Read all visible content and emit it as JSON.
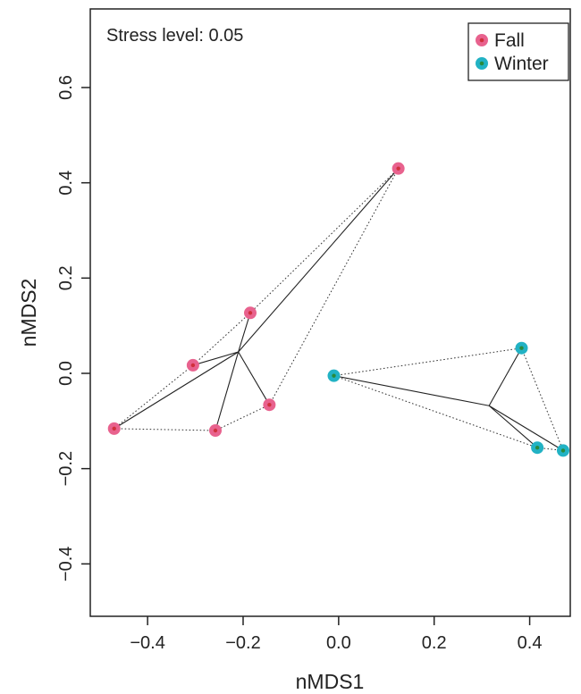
{
  "chart_data": {
    "type": "scatter",
    "title": "",
    "xlabel": "nMDS1",
    "ylabel": "nMDS2",
    "annotation": "Stress level: 0.05",
    "xlim": [
      -0.52,
      0.485
    ],
    "ylim": [
      -0.51,
      0.765
    ],
    "x_ticks": [
      -0.4,
      -0.2,
      0.0,
      0.2,
      0.4
    ],
    "x_tick_labels": [
      "−0.4",
      "−0.2",
      "0.0",
      "0.2",
      "0.4"
    ],
    "y_ticks": [
      -0.4,
      -0.2,
      0.0,
      0.2,
      0.4,
      0.6
    ],
    "y_tick_labels": [
      "−0.4",
      "−0.2",
      "0.0",
      "0.2",
      "0.4",
      "0.6"
    ],
    "grid": false,
    "legend_position": "top-right",
    "series": [
      {
        "name": "Fall",
        "color": "#e8628e",
        "center_color": "#d0303c",
        "centroid": [
          -0.21,
          0.045
        ],
        "points": [
          {
            "x": 0.125,
            "y": 0.43
          },
          {
            "x": -0.185,
            "y": 0.127
          },
          {
            "x": -0.305,
            "y": 0.017
          },
          {
            "x": -0.145,
            "y": -0.066
          },
          {
            "x": -0.258,
            "y": -0.12
          },
          {
            "x": -0.47,
            "y": -0.116
          }
        ],
        "hull_order": [
          0,
          3,
          4,
          5,
          2,
          1
        ]
      },
      {
        "name": "Winter",
        "color": "#22b2c4",
        "center_color": "#2a8a3c",
        "centroid": [
          0.315,
          -0.068
        ],
        "points": [
          {
            "x": -0.01,
            "y": -0.005
          },
          {
            "x": 0.383,
            "y": 0.053
          },
          {
            "x": 0.416,
            "y": -0.156
          },
          {
            "x": 0.47,
            "y": -0.162
          }
        ],
        "hull_order": [
          0,
          1,
          3,
          2
        ]
      }
    ]
  }
}
